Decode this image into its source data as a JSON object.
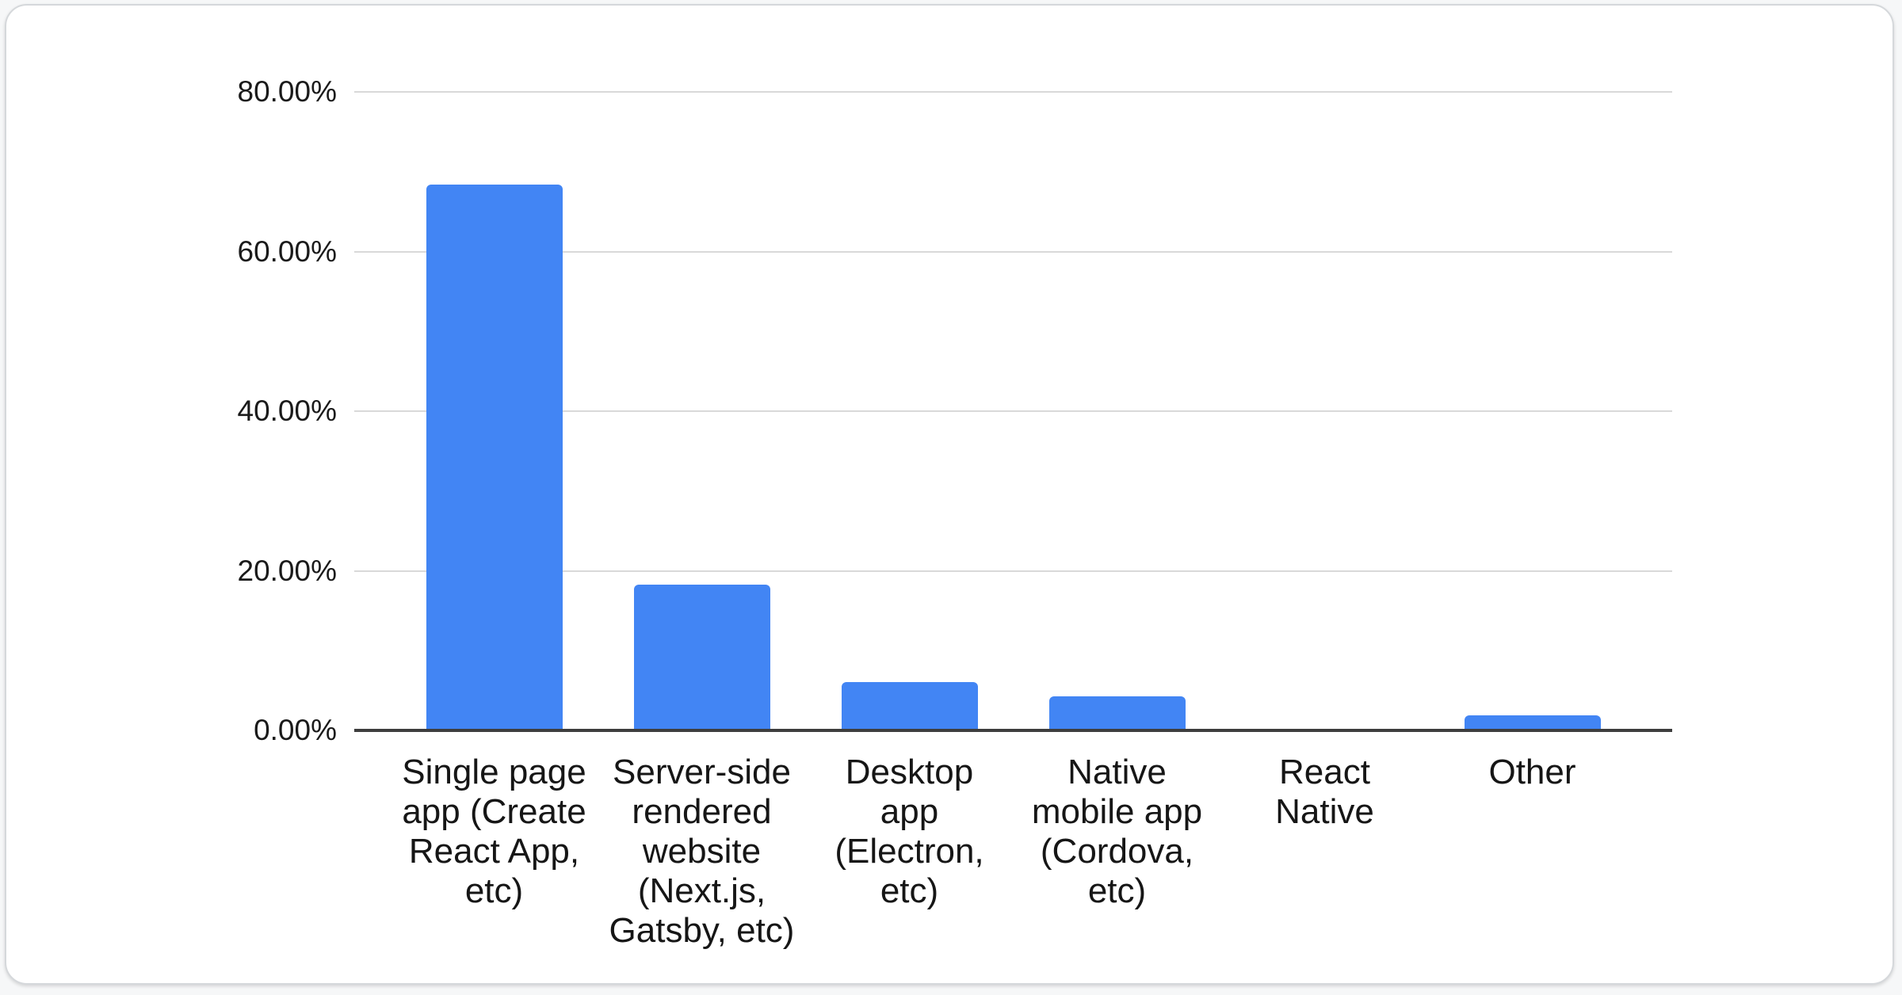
{
  "chart_data": {
    "type": "bar",
    "title": "",
    "xlabel": "",
    "ylabel": "",
    "categories": [
      "Single page app (Create React App, etc)",
      "Server-side rendered website (Next.js, Gatsby, etc)",
      "Desktop app (Electron, etc)",
      "Native mobile app (Cordova, etc)",
      "React Native",
      "Other"
    ],
    "values": [
      68.4,
      18.3,
      6.1,
      4.3,
      0,
      1.9
    ],
    "ylim": [
      0,
      80
    ],
    "y_tick_labels": [
      "0.00%",
      "20.00%",
      "40.00%",
      "60.00%",
      "80.00%"
    ],
    "y_tick_values": [
      0,
      20,
      40,
      60,
      80
    ],
    "x_tick_display": [
      "Single page\napp (Create\nReact App,\netc)",
      "Server-side\nrendered\nwebsite\n(Next.js,\nGatsby, etc)",
      "Desktop\napp\n(Electron,\netc)",
      "Native\nmobile app\n(Cordova,\netc)",
      "React\nNative",
      "Other"
    ],
    "grid": true,
    "legend_position": "none"
  },
  "colors": {
    "bar": "#4285f4",
    "gridline": "#d9d9d9",
    "axis": "#3e3e3e",
    "text": "#1a1a1a"
  }
}
